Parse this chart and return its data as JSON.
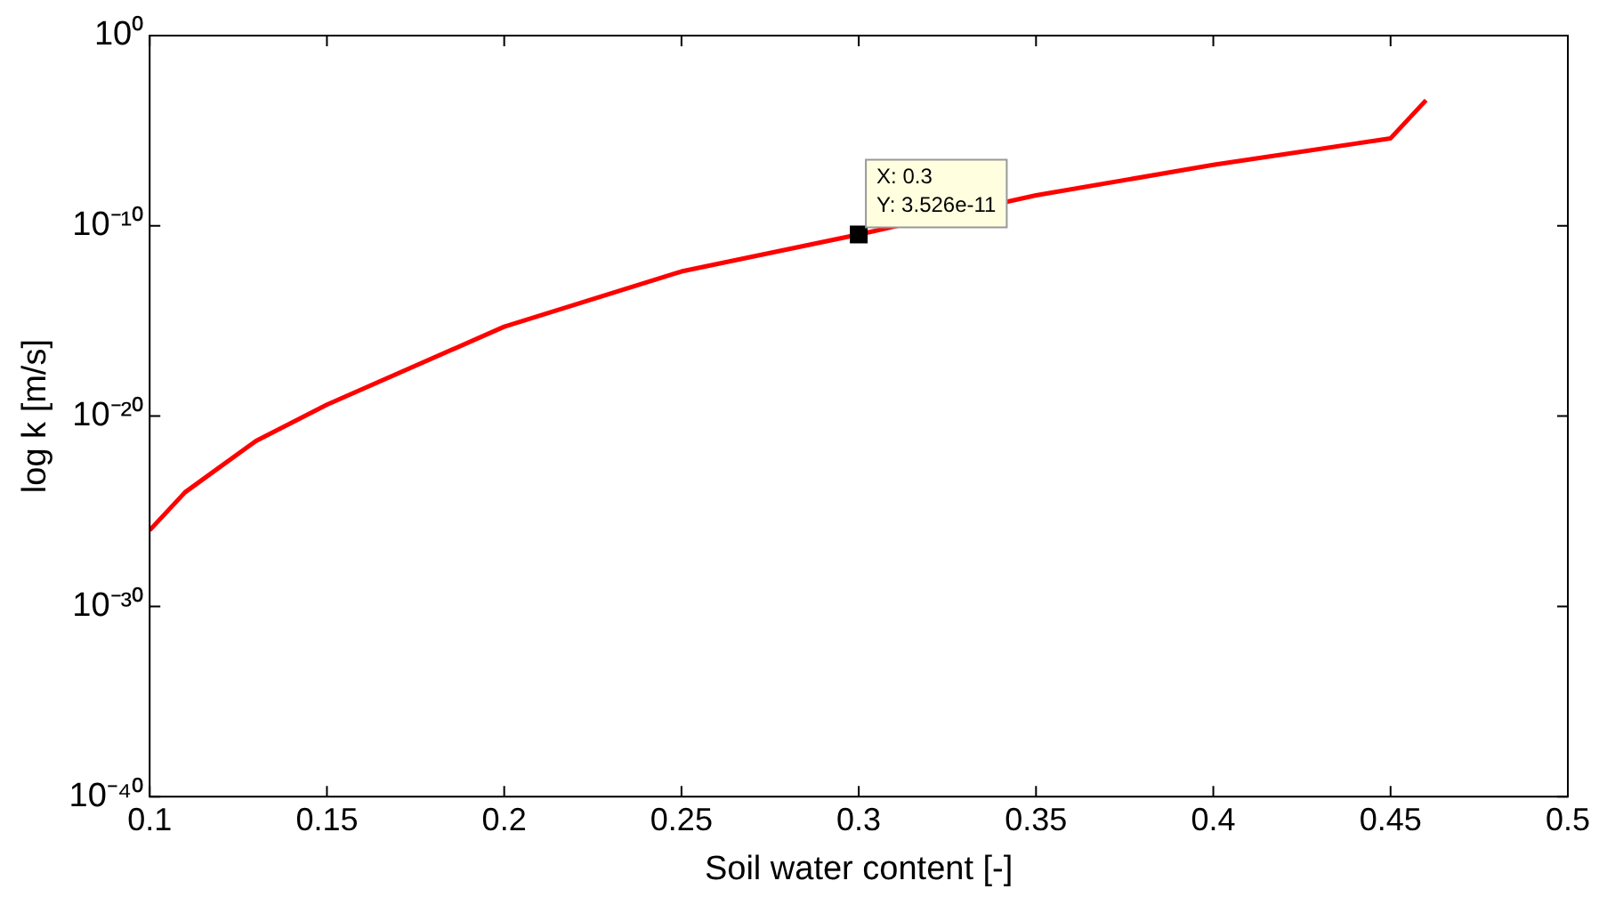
{
  "chart_data": {
    "type": "line",
    "xlabel": "Soil water content [-]",
    "ylabel": "log k [m/s]",
    "log": "y",
    "x": [
      0.1,
      0.11,
      0.13,
      0.15,
      0.2,
      0.25,
      0.3,
      0.35,
      0.4,
      0.45,
      0.46
    ],
    "series": [
      {
        "color": "#ff0000",
        "values": [
          1e-26,
          1e-24,
          5e-22,
          4e-20,
          5e-16,
          4e-13,
          3.526e-11,
          4e-09,
          1.6e-07,
          4e-06,
          0.0004
        ]
      }
    ],
    "xlim": [
      0.1,
      0.5
    ],
    "xticks": [
      0.1,
      0.15,
      0.2,
      0.25,
      0.3,
      0.35,
      0.4,
      0.45,
      0.5
    ],
    "ylim": [
      1e-40,
      1
    ],
    "yticks": [
      {
        "value": 1e-40,
        "label": "10⁻⁴⁰"
      },
      {
        "value": 1e-30,
        "label": "10⁻³⁰"
      },
      {
        "value": 1e-20,
        "label": "10⁻²⁰"
      },
      {
        "value": 1e-10,
        "label": "10⁻¹⁰"
      },
      {
        "value": 1,
        "label": "10⁰"
      }
    ],
    "grid": false,
    "legend": false,
    "marker": "none",
    "line_style": "solid",
    "annotations": [
      {
        "text": "X: 0.3\nY: 3.526e-11",
        "x": 0.3,
        "y": 3.526e-11
      }
    ]
  }
}
